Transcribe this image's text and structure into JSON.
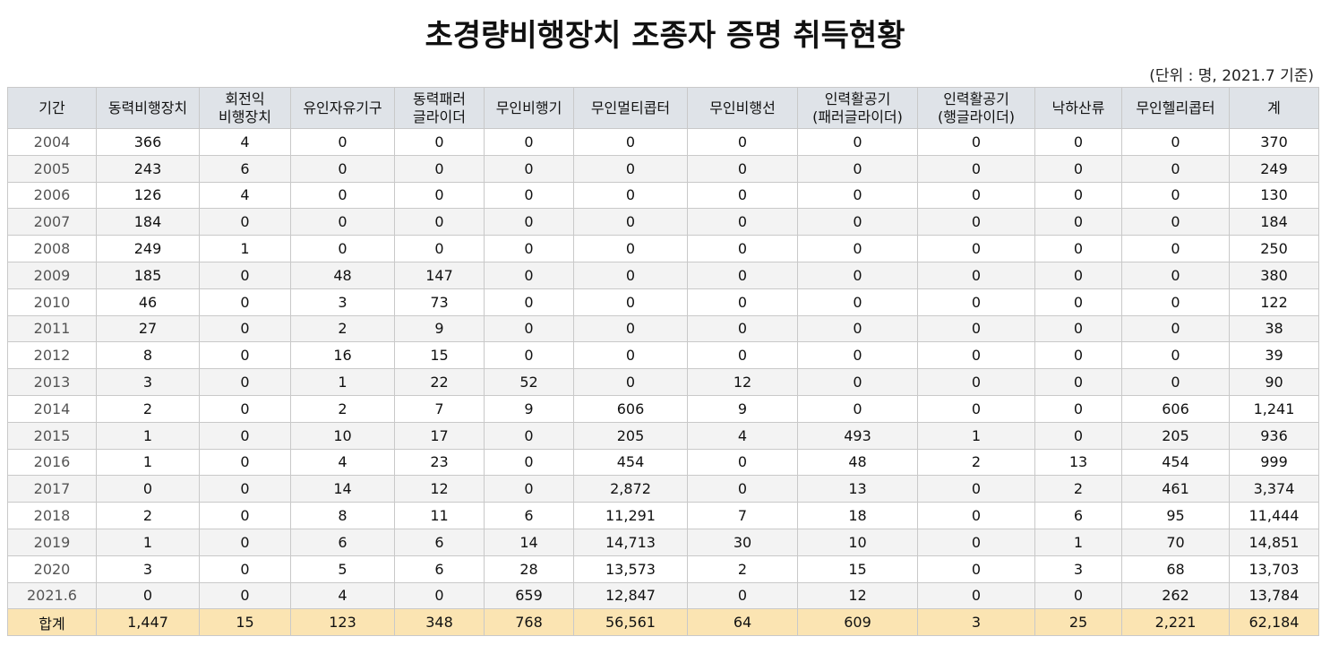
{
  "header": {
    "title": "초경량비행장치 조종자 증명 취득현황",
    "unit": "(단위 : 명, 2021.7 기준)"
  },
  "table": {
    "columns": [
      [
        "기간"
      ],
      [
        "동력비행장치"
      ],
      [
        "회전익",
        "비행장치"
      ],
      [
        "유인자유기구"
      ],
      [
        "동력패러",
        "글라이더"
      ],
      [
        "무인비행기"
      ],
      [
        "무인멀티콥터"
      ],
      [
        "무인비행선"
      ],
      [
        "인력활공기",
        "(패러글라이더)"
      ],
      [
        "인력활공기",
        "(행글라이더)"
      ],
      [
        "낙하산류"
      ],
      [
        "무인헬리콥터"
      ],
      [
        "계"
      ]
    ],
    "rows": [
      [
        "2004",
        "366",
        "4",
        "0",
        "0",
        "0",
        "0",
        "0",
        "0",
        "0",
        "0",
        "0",
        "370"
      ],
      [
        "2005",
        "243",
        "6",
        "0",
        "0",
        "0",
        "0",
        "0",
        "0",
        "0",
        "0",
        "0",
        "249"
      ],
      [
        "2006",
        "126",
        "4",
        "0",
        "0",
        "0",
        "0",
        "0",
        "0",
        "0",
        "0",
        "0",
        "130"
      ],
      [
        "2007",
        "184",
        "0",
        "0",
        "0",
        "0",
        "0",
        "0",
        "0",
        "0",
        "0",
        "0",
        "184"
      ],
      [
        "2008",
        "249",
        "1",
        "0",
        "0",
        "0",
        "0",
        "0",
        "0",
        "0",
        "0",
        "0",
        "250"
      ],
      [
        "2009",
        "185",
        "0",
        "48",
        "147",
        "0",
        "0",
        "0",
        "0",
        "0",
        "0",
        "0",
        "380"
      ],
      [
        "2010",
        "46",
        "0",
        "3",
        "73",
        "0",
        "0",
        "0",
        "0",
        "0",
        "0",
        "0",
        "122"
      ],
      [
        "2011",
        "27",
        "0",
        "2",
        "9",
        "0",
        "0",
        "0",
        "0",
        "0",
        "0",
        "0",
        "38"
      ],
      [
        "2012",
        "8",
        "0",
        "16",
        "15",
        "0",
        "0",
        "0",
        "0",
        "0",
        "0",
        "0",
        "39"
      ],
      [
        "2013",
        "3",
        "0",
        "1",
        "22",
        "52",
        "0",
        "12",
        "0",
        "0",
        "0",
        "0",
        "90"
      ],
      [
        "2014",
        "2",
        "0",
        "2",
        "7",
        "9",
        "606",
        "9",
        "0",
        "0",
        "0",
        "606",
        "1,241"
      ],
      [
        "2015",
        "1",
        "0",
        "10",
        "17",
        "0",
        "205",
        "4",
        "493",
        "1",
        "0",
        "205",
        "936"
      ],
      [
        "2016",
        "1",
        "0",
        "4",
        "23",
        "0",
        "454",
        "0",
        "48",
        "2",
        "13",
        "454",
        "999"
      ],
      [
        "2017",
        "0",
        "0",
        "14",
        "12",
        "0",
        "2,872",
        "0",
        "13",
        "0",
        "2",
        "461",
        "3,374"
      ],
      [
        "2018",
        "2",
        "0",
        "8",
        "11",
        "6",
        "11,291",
        "7",
        "18",
        "0",
        "6",
        "95",
        "11,444"
      ],
      [
        "2019",
        "1",
        "0",
        "6",
        "6",
        "14",
        "14,713",
        "30",
        "10",
        "0",
        "1",
        "70",
        "14,851"
      ],
      [
        "2020",
        "3",
        "0",
        "5",
        "6",
        "28",
        "13,573",
        "2",
        "15",
        "0",
        "3",
        "68",
        "13,703"
      ],
      [
        "2021.6",
        "0",
        "0",
        "4",
        "0",
        "659",
        "12,847",
        "0",
        "12",
        "0",
        "0",
        "262",
        "13,784"
      ]
    ],
    "total": [
      "합계",
      "1,447",
      "15",
      "123",
      "348",
      "768",
      "56,561",
      "64",
      "609",
      "3",
      "25",
      "2,221",
      "62,184"
    ]
  }
}
